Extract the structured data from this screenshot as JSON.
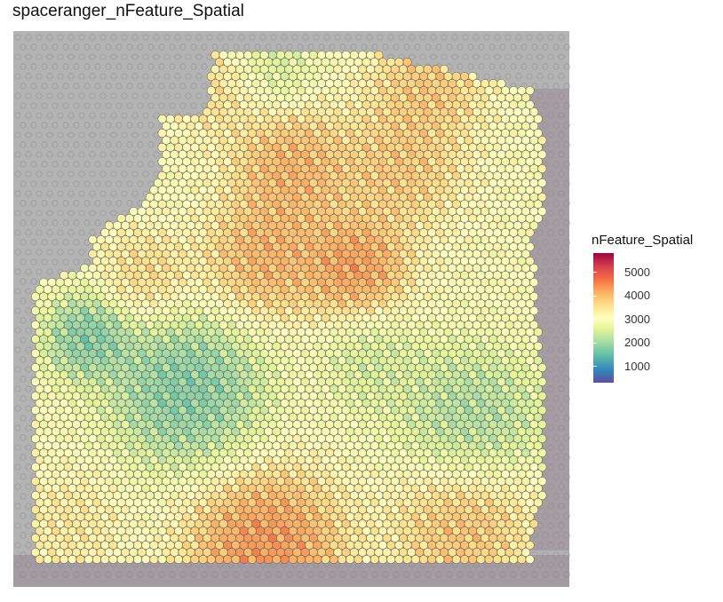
{
  "chart_data": {
    "type": "heatmap",
    "title": "spaceranger_nFeature_Spatial",
    "legend_title": "nFeature_Spatial",
    "legend_position": "right",
    "colorscale": "Spectral (reversed)",
    "color_limits": [
      300,
      5800
    ],
    "legend_ticks": [
      "1000",
      "2000",
      "3000",
      "4000",
      "5000"
    ],
    "legend_tick_values": [
      1000,
      2000,
      3000,
      4000,
      5000
    ],
    "grid": false,
    "background": "grey H&E tissue image",
    "regions": [
      {
        "name": "upper-left orange patch",
        "value": 3900
      },
      {
        "name": "upper-center red region",
        "value": 4500
      },
      {
        "name": "upper-right orange region",
        "value": 4200
      },
      {
        "name": "center red hotspot",
        "value": 4800
      },
      {
        "name": "left blue cluster",
        "value": 1100
      },
      {
        "name": "right teal cluster",
        "value": 1600
      },
      {
        "name": "bottom red band",
        "value": 4900
      },
      {
        "name": "general tissue",
        "value": 3000
      }
    ],
    "colors": [
      "#5e4fa2",
      "#3288bd",
      "#66c2a5",
      "#abdda4",
      "#e6f598",
      "#ffffbf",
      "#fee08b",
      "#fdae61",
      "#f46d43",
      "#d53e4f",
      "#9e0142"
    ]
  }
}
